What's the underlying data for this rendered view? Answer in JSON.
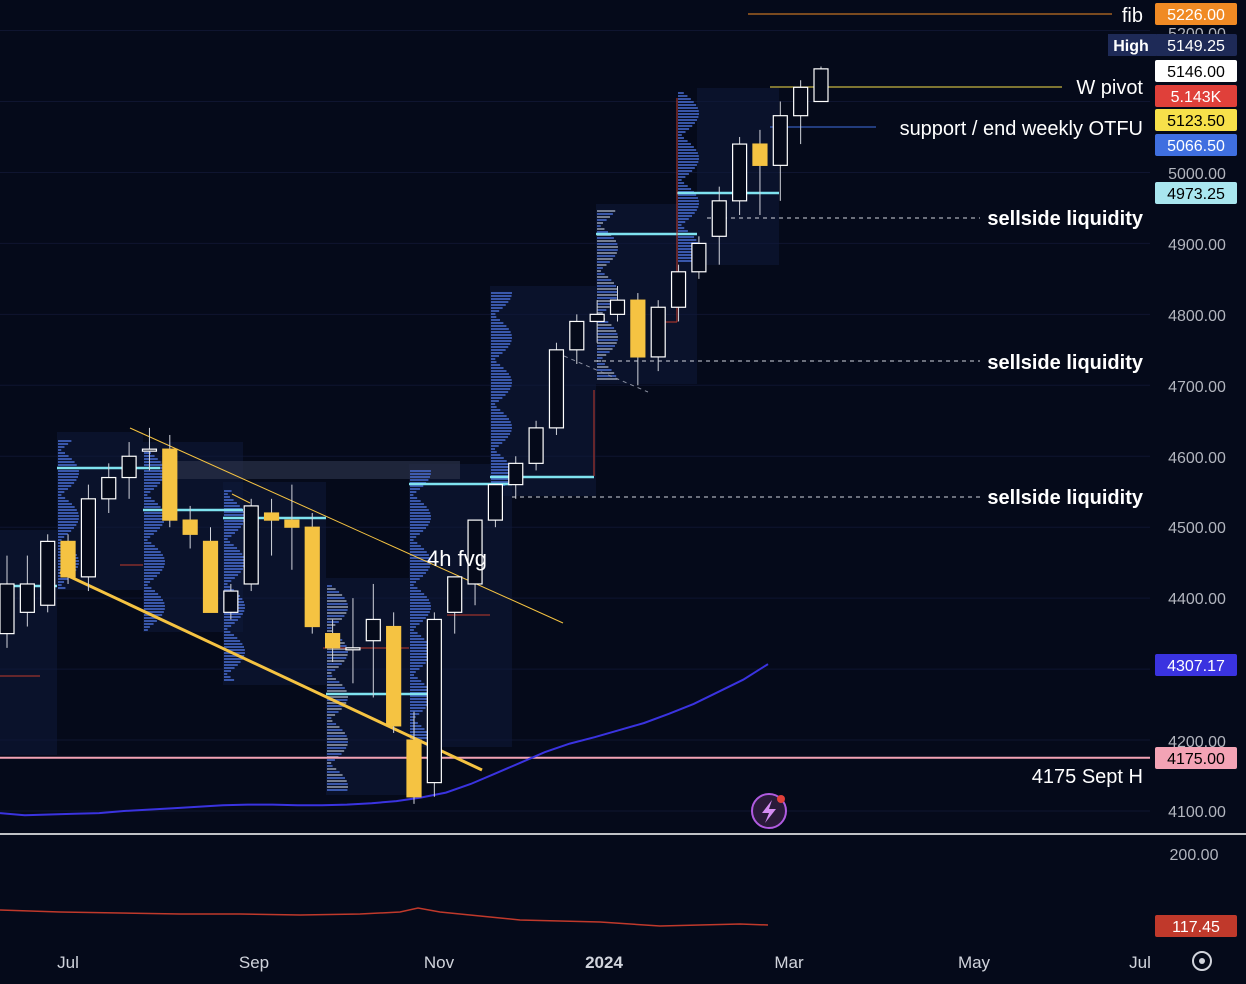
{
  "colors": {
    "background": "#050a1a",
    "bull_body": "#ffffff",
    "bear_body": "#f5c342",
    "wick": "#d1d4dc",
    "ma_line": "#3a33e0",
    "trendline": "#f5c342",
    "vp_line": "#7fe3f0",
    "osc_line": "#c0392b",
    "support_4175": "#f3a3b5"
  },
  "x_axis": {
    "ticks": [
      {
        "label": "Jul",
        "week": 0
      },
      {
        "label": "Sep",
        "week": 9
      },
      {
        "label": "Nov",
        "week": 18
      },
      {
        "label": "2024",
        "week": 26.5
      },
      {
        "label": "Mar",
        "week": 35
      },
      {
        "label": "May",
        "week": 44
      },
      {
        "label": "Jul",
        "week": 52
      }
    ]
  },
  "y_axis": {
    "ticks": [
      "5200.00",
      "5000.00",
      "4900.00",
      "4800.00",
      "4700.00",
      "4600.00",
      "4500.00",
      "4400.00",
      "4200.00",
      "4100.00"
    ],
    "osc_tick": "200.00"
  },
  "price_badges": [
    {
      "id": "fib",
      "label": "5226.00",
      "bg": "#f08a24",
      "fg": "#ffffff"
    },
    {
      "id": "high",
      "label": "5149.25",
      "bg": "#1e2a57",
      "fg": "#ffffff",
      "prefix": "High"
    },
    {
      "id": "last",
      "label": "5146.00",
      "bg": "#ffffff",
      "fg": "#000000"
    },
    {
      "id": "volume",
      "label": "5.143K",
      "bg": "#e0403a",
      "fg": "#ffffff"
    },
    {
      "id": "yellow",
      "label": "5123.50",
      "bg": "#f7e04a",
      "fg": "#000000"
    },
    {
      "id": "blue",
      "label": "5066.50",
      "bg": "#3f6fe0",
      "fg": "#ffffff"
    },
    {
      "id": "cyan",
      "label": "4973.25",
      "bg": "#a9e6ef",
      "fg": "#000000"
    },
    {
      "id": "ma",
      "label": "4307.17",
      "bg": "#3a33e0",
      "fg": "#ffffff"
    },
    {
      "id": "sept",
      "label": "4175.00",
      "bg": "#f3a3b5",
      "fg": "#000000"
    },
    {
      "id": "osc",
      "label": "117.45",
      "bg": "#c0392b",
      "fg": "#ffffff"
    }
  ],
  "annotations": {
    "fib": "fib",
    "w_pivot": "W pivot",
    "support": "support / end weekly OTFU",
    "sellside_1": "sellside liquidity",
    "sellside_2": "sellside liquidity",
    "sellside_3": "sellside liquidity",
    "sept_h": "4175 Sept H",
    "fvg": "4h fvg"
  },
  "chart_data": {
    "type": "candlestick",
    "timeframe": "weekly",
    "ylim": [
      4080,
      5230
    ],
    "levels": {
      "fib": 5226.0,
      "w_pivot": 5146.0,
      "support_weekly_otfu": 5112.0,
      "sellside_liquidity": [
        4938,
        4737,
        4546
      ],
      "sept_high": 4175.0
    },
    "moving_average": {
      "last": 4307.17,
      "values": [
        4097,
        4094,
        4095,
        4096,
        4097,
        4100,
        4102,
        4104,
        4106,
        4108,
        4109,
        4109,
        4108,
        4108,
        4109,
        4111,
        4114,
        4119,
        4126,
        4138,
        4153,
        4168,
        4183,
        4195,
        4204,
        4214,
        4224,
        4237,
        4251,
        4268,
        4285,
        4307
      ]
    },
    "oscillator": {
      "last": 117.45
    },
    "candles": [
      {
        "o": 4350,
        "h": 4460,
        "l": 4330,
        "c": 4420
      },
      {
        "o": 4380,
        "h": 4460,
        "l": 4360,
        "c": 4420
      },
      {
        "o": 4390,
        "h": 4490,
        "l": 4380,
        "c": 4480
      },
      {
        "o": 4480,
        "h": 4490,
        "l": 4420,
        "c": 4430
      },
      {
        "o": 4430,
        "h": 4560,
        "l": 4410,
        "c": 4540
      },
      {
        "o": 4540,
        "h": 4590,
        "l": 4520,
        "c": 4570
      },
      {
        "o": 4570,
        "h": 4620,
        "l": 4540,
        "c": 4600
      },
      {
        "o": 4610,
        "h": 4640,
        "l": 4580,
        "c": 4610
      },
      {
        "o": 4610,
        "h": 4630,
        "l": 4500,
        "c": 4510
      },
      {
        "o": 4510,
        "h": 4530,
        "l": 4470,
        "c": 4490
      },
      {
        "o": 4480,
        "h": 4500,
        "l": 4380,
        "c": 4380
      },
      {
        "o": 4380,
        "h": 4420,
        "l": 4370,
        "c": 4410
      },
      {
        "o": 4420,
        "h": 4540,
        "l": 4410,
        "c": 4530
      },
      {
        "o": 4520,
        "h": 4540,
        "l": 4460,
        "c": 4510
      },
      {
        "o": 4510,
        "h": 4560,
        "l": 4440,
        "c": 4500
      },
      {
        "o": 4500,
        "h": 4520,
        "l": 4350,
        "c": 4360
      },
      {
        "o": 4350,
        "h": 4370,
        "l": 4310,
        "c": 4330
      },
      {
        "o": 4330,
        "h": 4400,
        "l": 4280,
        "c": 4330
      },
      {
        "o": 4340,
        "h": 4420,
        "l": 4260,
        "c": 4370
      },
      {
        "o": 4360,
        "h": 4380,
        "l": 4210,
        "c": 4220
      },
      {
        "o": 4200,
        "h": 4240,
        "l": 4110,
        "c": 4120
      },
      {
        "o": 4140,
        "h": 4380,
        "l": 4120,
        "c": 4370
      },
      {
        "o": 4380,
        "h": 4430,
        "l": 4350,
        "c": 4430
      },
      {
        "o": 4420,
        "h": 4510,
        "l": 4390,
        "c": 4510
      },
      {
        "o": 4510,
        "h": 4560,
        "l": 4500,
        "c": 4560
      },
      {
        "o": 4560,
        "h": 4600,
        "l": 4540,
        "c": 4590
      },
      {
        "o": 4590,
        "h": 4650,
        "l": 4580,
        "c": 4640
      },
      {
        "o": 4640,
        "h": 4760,
        "l": 4630,
        "c": 4750
      },
      {
        "o": 4750,
        "h": 4800,
        "l": 4730,
        "c": 4790
      },
      {
        "o": 4790,
        "h": 4820,
        "l": 4760,
        "c": 4800
      },
      {
        "o": 4800,
        "h": 4840,
        "l": 4790,
        "c": 4820
      },
      {
        "o": 4820,
        "h": 4830,
        "l": 4700,
        "c": 4740
      },
      {
        "o": 4740,
        "h": 4820,
        "l": 4720,
        "c": 4810
      },
      {
        "o": 4810,
        "h": 4870,
        "l": 4790,
        "c": 4860
      },
      {
        "o": 4860,
        "h": 4910,
        "l": 4850,
        "c": 4900
      },
      {
        "o": 4910,
        "h": 4980,
        "l": 4870,
        "c": 4960
      },
      {
        "o": 4960,
        "h": 5050,
        "l": 4940,
        "c": 5040
      },
      {
        "o": 5040,
        "h": 5060,
        "l": 4940,
        "c": 5010
      },
      {
        "o": 5010,
        "h": 5100,
        "l": 4960,
        "c": 5080
      },
      {
        "o": 5080,
        "h": 5130,
        "l": 5040,
        "c": 5120
      },
      {
        "o": 5100,
        "h": 5149.25,
        "l": 5100,
        "c": 5146
      }
    ]
  }
}
